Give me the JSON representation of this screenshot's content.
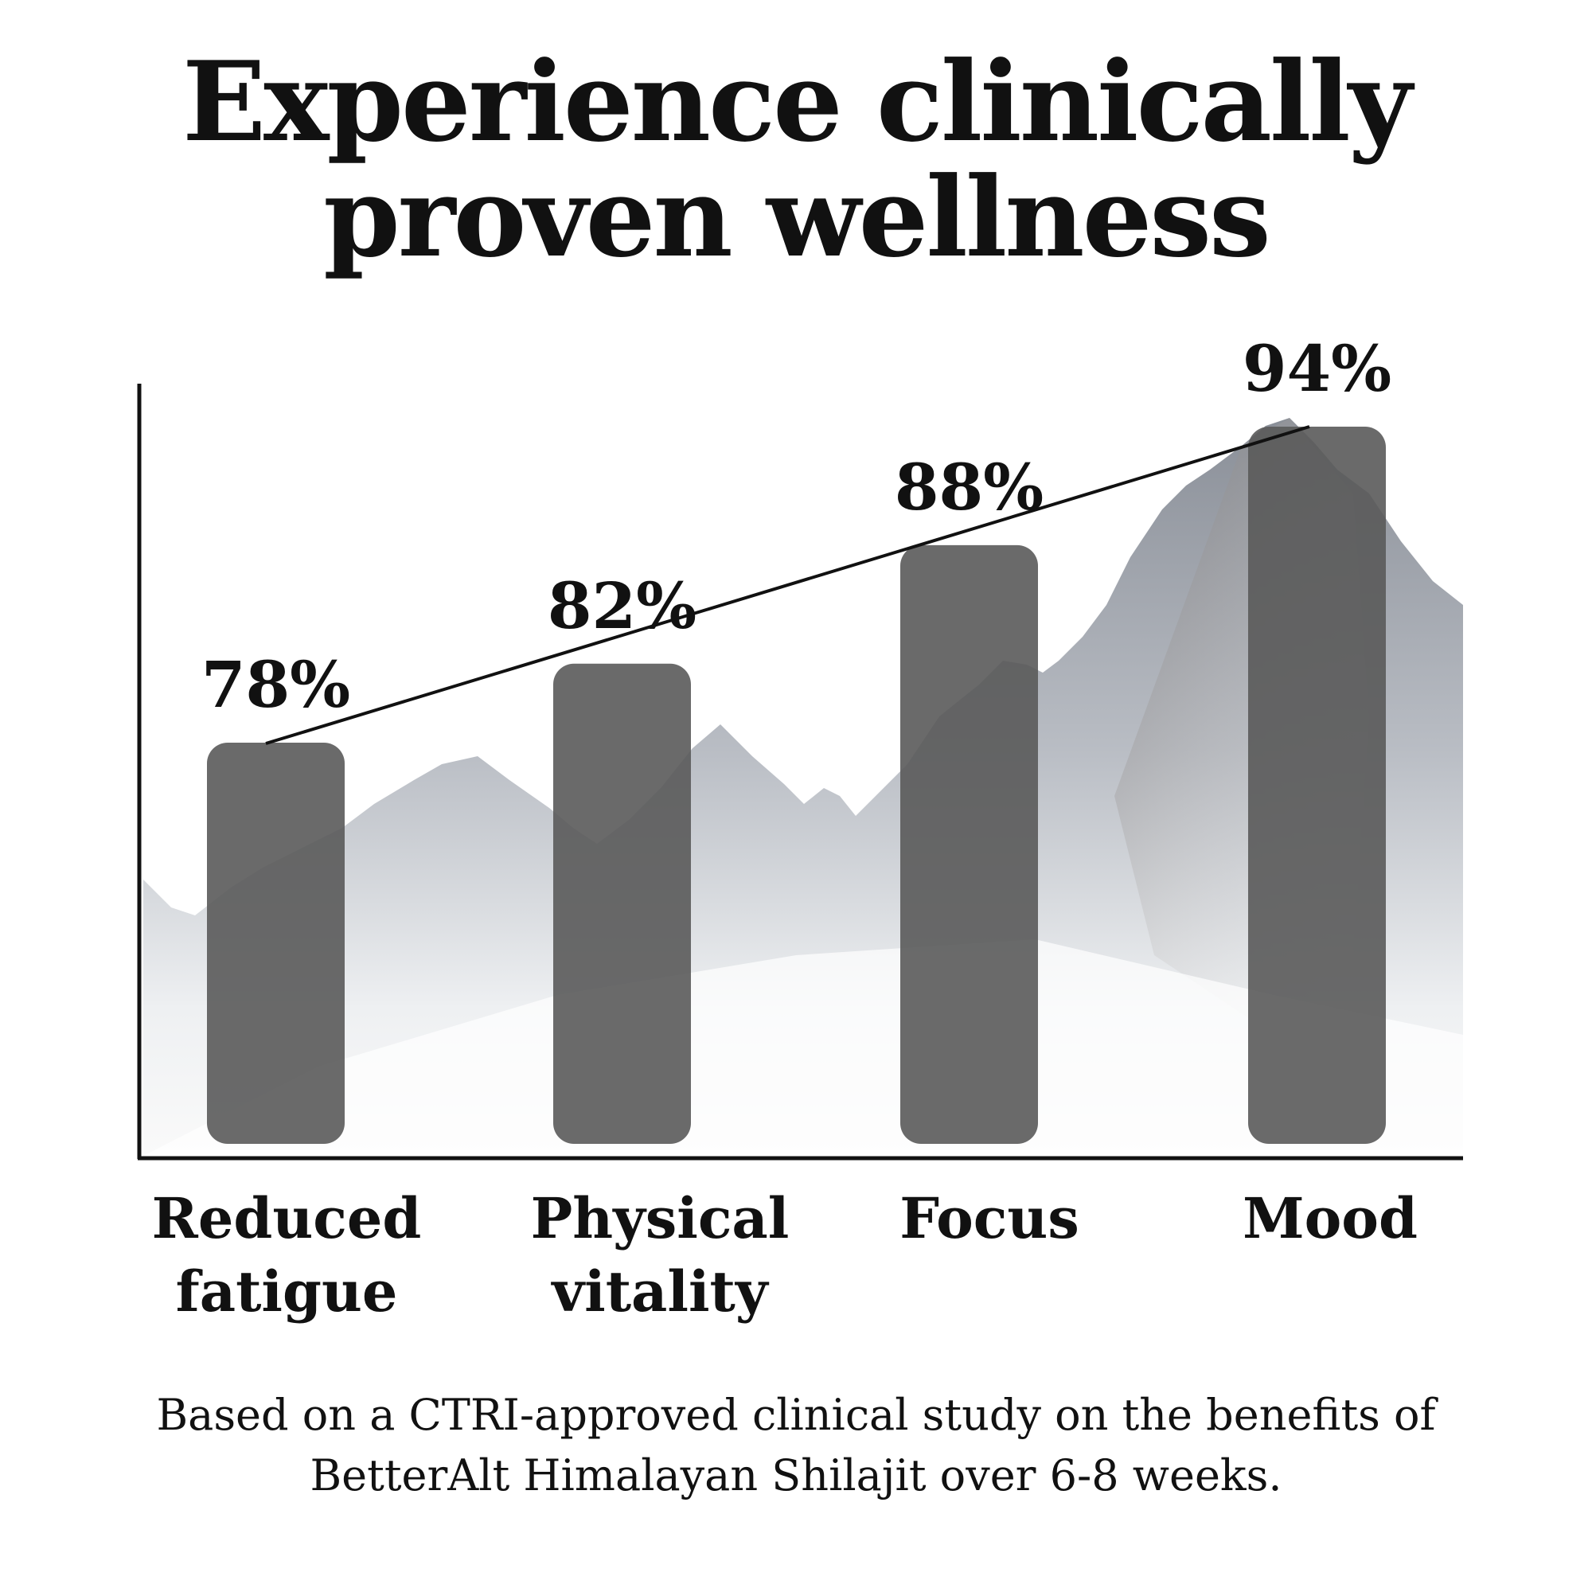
{
  "title": [
    "Experience clinically",
    "proven wellness"
  ],
  "footnote": [
    "Based on a CTRI-approved clinical study on the benefits of",
    "BetterAlt Himalayan Shilajit over 6-8 weeks."
  ],
  "chart_data": {
    "type": "bar",
    "categories": [
      [
        "Reduced",
        "fatigue"
      ],
      [
        "Physical",
        "vitality"
      ],
      [
        "Focus"
      ],
      [
        "Mood"
      ]
    ],
    "values": [
      78,
      82,
      88,
      94
    ],
    "data_labels": [
      "78%",
      "82%",
      "88%",
      "94%"
    ],
    "trend_line": true,
    "bar_color": "#5a5a5a",
    "background": "snowy mountain photo"
  }
}
